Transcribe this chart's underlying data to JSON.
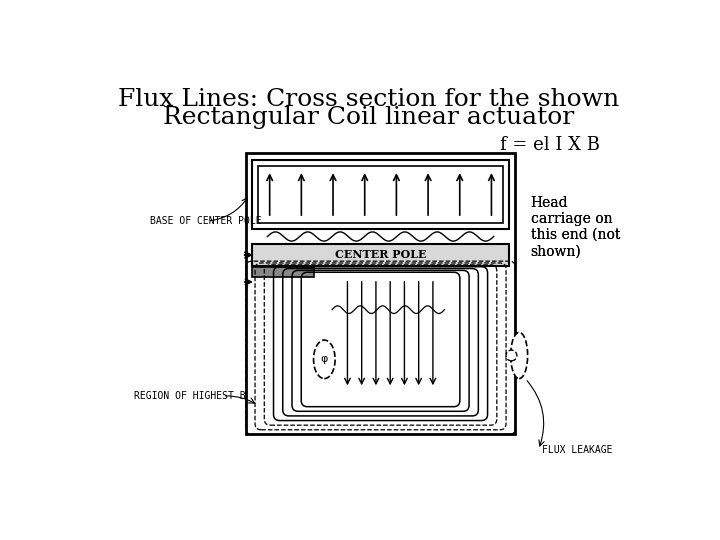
{
  "title_line1": "Flux Lines: Cross section for the shown",
  "title_line2": "Rectangular Coil linear actuator",
  "title_fontsize": 18,
  "title_font": "serif",
  "background_color": "#ffffff",
  "formula": "f = el I X B",
  "formula_fontsize": 13,
  "label_base_of_center_pole": "BASE OF CENTER POLE",
  "label_region_of_highest_b": "REGION OF HIGHEST B",
  "label_center_pole": "CENTER POLE",
  "label_flux_leakage": "FLUX LEAKAGE",
  "label_head_carriage": "Head\ncarriage on\nthis end (not\nshown)"
}
